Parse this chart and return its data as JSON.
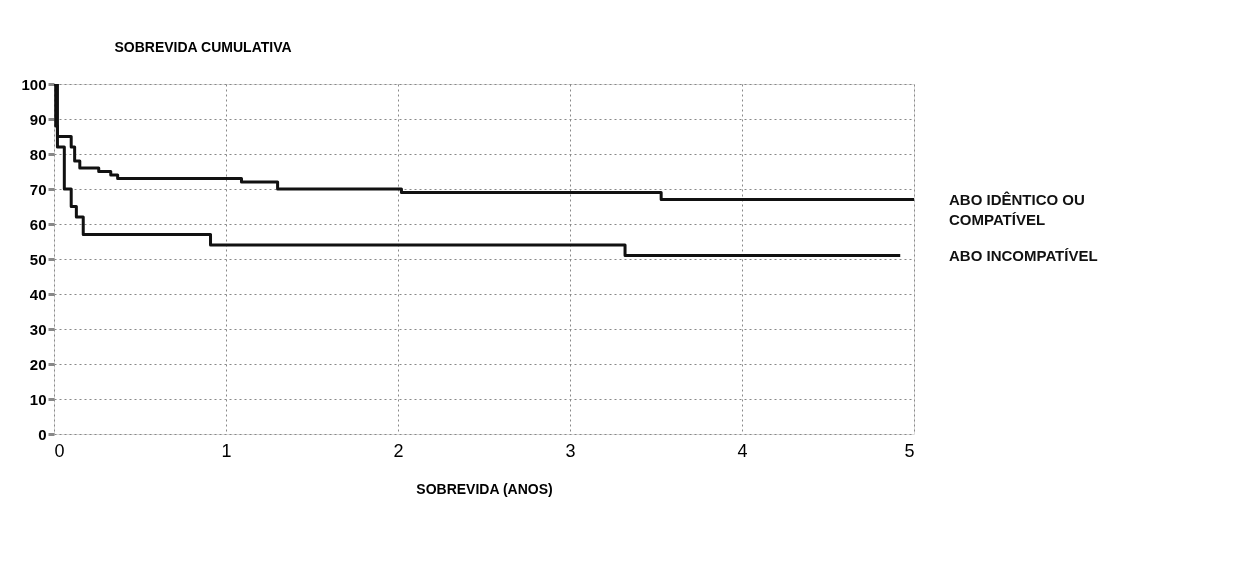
{
  "chart_data": {
    "type": "step",
    "ylabel": "SOBREVIDA CUMULATIVA",
    "xlabel": "SOBREVIDA (ANOS)",
    "xlim": [
      0,
      5
    ],
    "ylim": [
      0,
      100
    ],
    "xticks": [
      0,
      1,
      2,
      3,
      4,
      5
    ],
    "yticks": [
      0,
      10,
      20,
      30,
      40,
      50,
      60,
      70,
      80,
      90,
      100
    ],
    "grid": true,
    "line_style": "solid",
    "series": [
      {
        "name": "ABO IDÊNTICO OU COMPATÍVEL",
        "color": "#111111",
        "x": [
          0,
          0.01,
          0.02,
          0.1,
          0.12,
          0.15,
          0.26,
          0.33,
          0.37,
          1.09,
          1.3,
          2.02,
          3.53,
          5.0
        ],
        "values": [
          100,
          88,
          85,
          82,
          78,
          76,
          75,
          74,
          73,
          72,
          70,
          69,
          67,
          67
        ]
      },
      {
        "name": "ABO INCOMPATÍVEL",
        "color": "#111111",
        "x": [
          0,
          0.02,
          0.06,
          0.1,
          0.13,
          0.17,
          0.91,
          3.32,
          4.92
        ],
        "values": [
          100,
          82,
          70,
          65,
          62,
          57,
          54,
          51,
          51
        ]
      }
    ]
  }
}
